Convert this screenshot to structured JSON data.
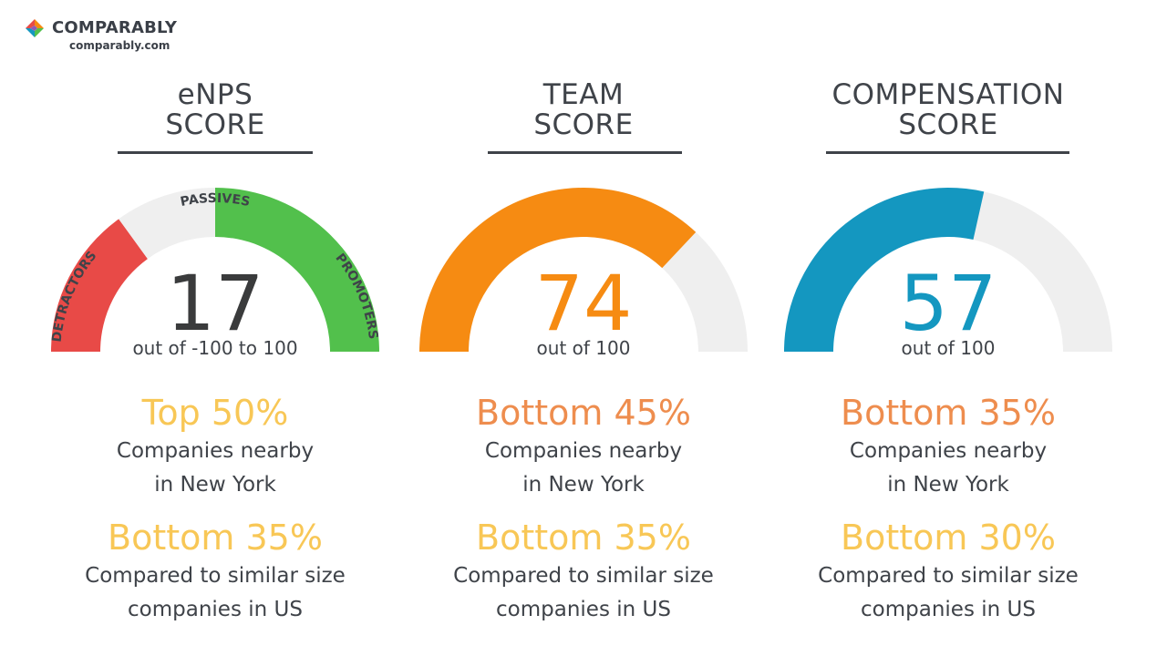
{
  "brand": {
    "name": "COMPARABLY",
    "url": "comparably.com"
  },
  "colors": {
    "text": "#3f4349",
    "track": "#efefef",
    "detractors": "#e84a47",
    "promoters": "#52c04c",
    "team": "#f68b12",
    "compensation": "#1497c0",
    "top_rank": "#f8c756",
    "bottom_rank": "#ee8d4e"
  },
  "panels": [
    {
      "id": "enps",
      "title_line1": "eNPS",
      "title_line2": "SCORE",
      "score": "17",
      "score_color": "#3a3b3c",
      "out_of": "out of -100 to 100",
      "segment_labels": {
        "detractors": "DETRACTORS",
        "passives": "PASSIVES",
        "promoters": "PROMOTERS"
      },
      "gauge": {
        "min": -100,
        "max": 100,
        "detractors_end": -40,
        "passives_end": 0
      },
      "nearby_rank": "Top 50%",
      "nearby_rank_color": "#f8c756",
      "nearby_line1": "Companies nearby",
      "nearby_line2": "in New York",
      "size_rank": "Bottom 35%",
      "size_rank_color": "#f8c756",
      "size_line1": "Compared to similar size",
      "size_line2": "companies in US"
    },
    {
      "id": "team",
      "title_line1": "TEAM",
      "title_line2": "SCORE",
      "score": "74",
      "score_color": "#f68b12",
      "out_of": "out of 100",
      "gauge": {
        "min": 0,
        "max": 100,
        "value": 74
      },
      "nearby_rank": "Bottom 45%",
      "nearby_rank_color": "#ee8d4e",
      "nearby_line1": "Companies nearby",
      "nearby_line2": "in New York",
      "size_rank": "Bottom 35%",
      "size_rank_color": "#f8c756",
      "size_line1": "Compared to similar size",
      "size_line2": "companies in US"
    },
    {
      "id": "compensation",
      "title_line1": "COMPENSATION",
      "title_line2": "SCORE",
      "score": "57",
      "score_color": "#1497c0",
      "out_of": "out of 100",
      "gauge": {
        "min": 0,
        "max": 100,
        "value": 57
      },
      "nearby_rank": "Bottom 35%",
      "nearby_rank_color": "#ee8d4e",
      "nearby_line1": "Companies nearby",
      "nearby_line2": "in New York",
      "size_rank": "Bottom 30%",
      "size_rank_color": "#f8c756",
      "size_line1": "Compared to similar size",
      "size_line2": "companies in US"
    }
  ]
}
